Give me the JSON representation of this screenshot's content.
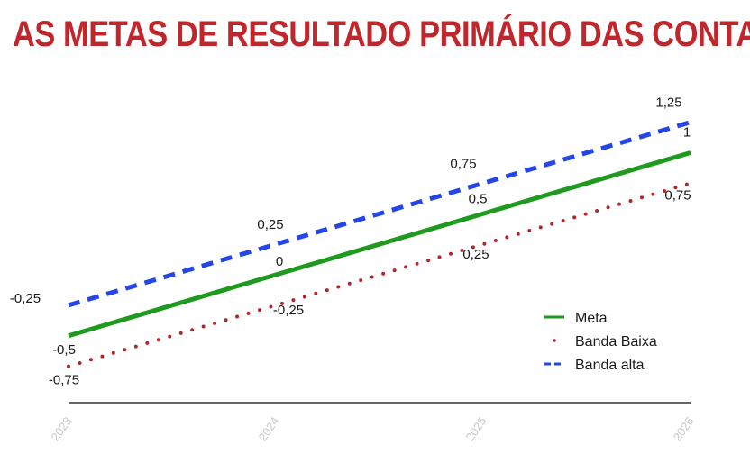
{
  "title": "AS METAS DE RESULTADO PRIMÁRIO DAS CONTAS",
  "colors": {
    "title": "#c0272d",
    "meta": "#1f9a1f",
    "banda_baixa": "#b3242c",
    "banda_alta": "#2446e6",
    "axis": "#333333",
    "tick": "#c8c8c8"
  },
  "chart_data": {
    "type": "line",
    "title": "AS METAS DE RESULTADO PRIMÁRIO DAS CONTAS",
    "xlabel": "",
    "ylabel": "",
    "categories": [
      "2023",
      "2024",
      "2025",
      "2026"
    ],
    "ylim": [
      -1,
      1.5
    ],
    "grid": false,
    "legend": "bottom-right",
    "series": [
      {
        "name": "Meta",
        "style": "solid",
        "values": [
          -0.5,
          0,
          0.5,
          1
        ],
        "labels": [
          "-0,5",
          "0",
          "0,5",
          "1"
        ]
      },
      {
        "name": "Banda Baixa",
        "style": "dotted",
        "values": [
          -0.75,
          -0.25,
          0.25,
          0.75
        ],
        "labels": [
          "-0,75",
          "-0,25",
          "0,25",
          "0,75"
        ]
      },
      {
        "name": "Banda alta",
        "style": "dashed",
        "values": [
          -0.25,
          0.25,
          0.75,
          1.25
        ],
        "labels": [
          "-0,25",
          "0,25",
          "0,75",
          "1,25"
        ]
      }
    ]
  }
}
